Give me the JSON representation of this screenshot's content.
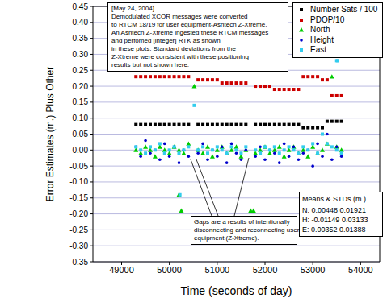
{
  "chart_data": {
    "type": "scatter",
    "x_label": "Time (seconds of day)",
    "y_label": "Error Estimates (m.) Plus Other",
    "xlim": [
      48400,
      54400
    ],
    "xticks": [
      49000,
      50000,
      51000,
      52000,
      53000,
      54000
    ],
    "ylim": [
      -0.35,
      0.45
    ],
    "yticks": [
      0.45,
      {
        "value": 0.4,
        "label": "0.40"
      },
      0.35,
      {
        "value": 0.3,
        "label": "0.30"
      },
      0.25,
      {
        "value": 0.2,
        "label": "0.20"
      },
      0.15,
      {
        "value": 0.1,
        "label": "0.10"
      },
      0.05,
      {
        "value": 0,
        "label": "0.00"
      },
      -0.05,
      {
        "value": -0.1,
        "label": "-0.10"
      },
      -0.15,
      {
        "value": -0.2,
        "label": "-0.20"
      },
      -0.25,
      {
        "value": -0.3,
        "label": "-0.30"
      },
      -0.35
    ],
    "grid": true,
    "legend": "top-right",
    "series": [
      {
        "name": "Number Sats / 100",
        "color": "#000000",
        "marker": "square",
        "x": [
          49300,
          49400,
          49500,
          49600,
          49700,
          49800,
          49900,
          50000,
          50100,
          50200,
          50300,
          50400,
          50600,
          50700,
          50800,
          50900,
          51000,
          51100,
          51200,
          51300,
          51400,
          51500,
          51600,
          51800,
          51900,
          52000,
          52100,
          52200,
          52300,
          52400,
          52500,
          52600,
          52700,
          52800,
          52900,
          53000,
          53100,
          53200,
          53300,
          53400,
          53500,
          53600
        ],
        "values": [
          0.08,
          0.08,
          0.08,
          0.08,
          0.08,
          0.08,
          0.08,
          0.08,
          0.08,
          0.08,
          0.08,
          0.08,
          0.08,
          0.08,
          0.08,
          0.08,
          0.08,
          0.08,
          0.08,
          0.08,
          0.08,
          0.08,
          0.08,
          0.08,
          0.08,
          0.08,
          0.08,
          0.08,
          0.08,
          0.08,
          0.08,
          0.08,
          0.08,
          0.07,
          0.07,
          0.07,
          0.07,
          0.07,
          0.09,
          0.09,
          0.09,
          0.09
        ]
      },
      {
        "name": "PDOP/10",
        "color": "#cc0000",
        "marker": "square",
        "x": [
          49300,
          49400,
          49500,
          49600,
          49700,
          49800,
          49900,
          50000,
          50100,
          50200,
          50300,
          50400,
          50600,
          50700,
          50800,
          50900,
          51000,
          51100,
          51200,
          51300,
          51400,
          51500,
          51600,
          51800,
          51900,
          52000,
          52100,
          52200,
          52300,
          52400,
          52500,
          52600,
          52700,
          52800,
          52900,
          53000,
          53100,
          53200,
          53300,
          53400,
          53500,
          53600
        ],
        "values": [
          0.23,
          0.23,
          0.23,
          0.23,
          0.23,
          0.23,
          0.23,
          0.23,
          0.23,
          0.23,
          0.23,
          0.23,
          0.22,
          0.22,
          0.22,
          0.22,
          0.22,
          0.21,
          0.21,
          0.21,
          0.21,
          0.21,
          0.21,
          0.2,
          0.2,
          0.2,
          0.2,
          0.19,
          0.19,
          0.19,
          0.19,
          0.19,
          0.19,
          0.23,
          0.23,
          0.23,
          0.23,
          0.22,
          0.22,
          0.17,
          0.17,
          0.17
        ]
      },
      {
        "name": "North",
        "color": "#00cc00",
        "marker": "triangle",
        "x": [
          49300,
          49400,
          49500,
          49600,
          49700,
          49800,
          49900,
          50000,
          50100,
          50200,
          50300,
          50400,
          50600,
          50700,
          50800,
          50900,
          51000,
          51100,
          51200,
          51300,
          51400,
          51500,
          51600,
          51800,
          51900,
          52000,
          52100,
          52200,
          52300,
          52400,
          52500,
          52600,
          52700,
          52800,
          52900,
          53000,
          53100,
          53200,
          53300,
          53400,
          53500,
          53600,
          50200,
          50250,
          50520,
          51700,
          51760
        ],
        "values": [
          0,
          -0.01,
          0.01,
          0,
          -0.02,
          0.01,
          0,
          -0.01,
          0.01,
          0,
          -0.01,
          0.02,
          0,
          -0.01,
          0.01,
          -0.02,
          0,
          0.01,
          -0.01,
          0,
          0.01,
          -0.02,
          0,
          -0.01,
          0,
          0.01,
          -0.01,
          0,
          0.01,
          -0.02,
          0,
          0.01,
          -0.01,
          0,
          -0.02,
          0.01,
          -0.01,
          0,
          0.02,
          0.23,
          0.01,
          0,
          -0.14,
          -0.19,
          0.2,
          -0.19,
          -0.19
        ]
      },
      {
        "name": "Height",
        "color": "#0000cc",
        "marker": "circle",
        "x": [
          49300,
          49400,
          49500,
          49600,
          49700,
          49800,
          49900,
          50000,
          50100,
          50200,
          50300,
          50400,
          50600,
          50700,
          50800,
          50900,
          51000,
          51100,
          51200,
          51300,
          51400,
          51500,
          51600,
          51800,
          51900,
          52000,
          52100,
          52200,
          52300,
          52400,
          52500,
          52600,
          52700,
          52800,
          52900,
          53000,
          53100,
          53200,
          53300,
          53400,
          53500,
          53600
        ],
        "values": [
          0.01,
          -0.02,
          0.03,
          -0.01,
          0,
          -0.03,
          0.02,
          -0.02,
          0.01,
          -0.04,
          0,
          -0.02,
          -0.01,
          0.02,
          -0.03,
          0,
          -0.02,
          0.01,
          -0.04,
          0.02,
          -0.01,
          -0.03,
          0,
          -0.02,
          0.01,
          -0.03,
          0,
          -0.01,
          -0.04,
          0.02,
          -0.02,
          0.01,
          -0.03,
          -0.01,
          0,
          -0.05,
          0.02,
          -0.02,
          0.05,
          -0.03,
          0.01,
          -0.02
        ]
      },
      {
        "name": "East",
        "color": "#33ccee",
        "marker": "square",
        "x": [
          49300,
          49400,
          49500,
          49600,
          49700,
          49800,
          49900,
          50000,
          50100,
          50200,
          50300,
          50400,
          50600,
          50700,
          50800,
          50900,
          51000,
          51100,
          51200,
          51300,
          51400,
          51500,
          51600,
          51800,
          51900,
          52000,
          52100,
          52200,
          52300,
          52400,
          52500,
          52600,
          52700,
          52800,
          52900,
          53000,
          53100,
          53200,
          53300,
          53400,
          53500,
          53600,
          50220,
          50520,
          53500,
          53520
        ],
        "values": [
          0.01,
          0,
          -0.01,
          0.01,
          0,
          0.02,
          -0.01,
          0,
          0.01,
          -0.01,
          0,
          0.01,
          0,
          0.01,
          -0.01,
          0,
          0.01,
          0,
          -0.01,
          0.01,
          0,
          -0.01,
          0.01,
          0,
          -0.01,
          0.01,
          0,
          0.01,
          -0.01,
          0,
          0.01,
          0,
          -0.01,
          0.01,
          0,
          0.02,
          -0.01,
          0.05,
          0.02,
          0.01,
          0,
          -0.01,
          -0.14,
          0.14,
          0.28,
          0.28
        ]
      }
    ],
    "annotations": [
      {
        "lines": [
          "[May 24, 2004]",
          "Demodulated XCOR messages were converted",
          "to RTCM 18/19 for user equipment-Ashtech Z-Xtreme.",
          "An Ashtech Z-Xtreme ingested these RTCM messages",
          "and perfomed [integer] RTK as shown",
          "in these plots.  Standard deviations from the",
          "Z-Xtreme were consistent with these positioning",
          "results but not shown here."
        ]
      },
      {
        "lines": [
          "Gaps are a results of intentionally",
          "disconnecting and reconnecting user",
          "equipment (Z-Xtreme)."
        ]
      }
    ],
    "stats": {
      "title": "Means & STDs (m.)",
      "rows": [
        {
          "label": "N:",
          "mean": 0.00448,
          "std": 0.01921
        },
        {
          "label": "H:",
          "mean": -0.01149,
          "std": 0.03133
        },
        {
          "label": "E:",
          "mean": 0.00352,
          "std": 0.01388
        }
      ]
    }
  }
}
